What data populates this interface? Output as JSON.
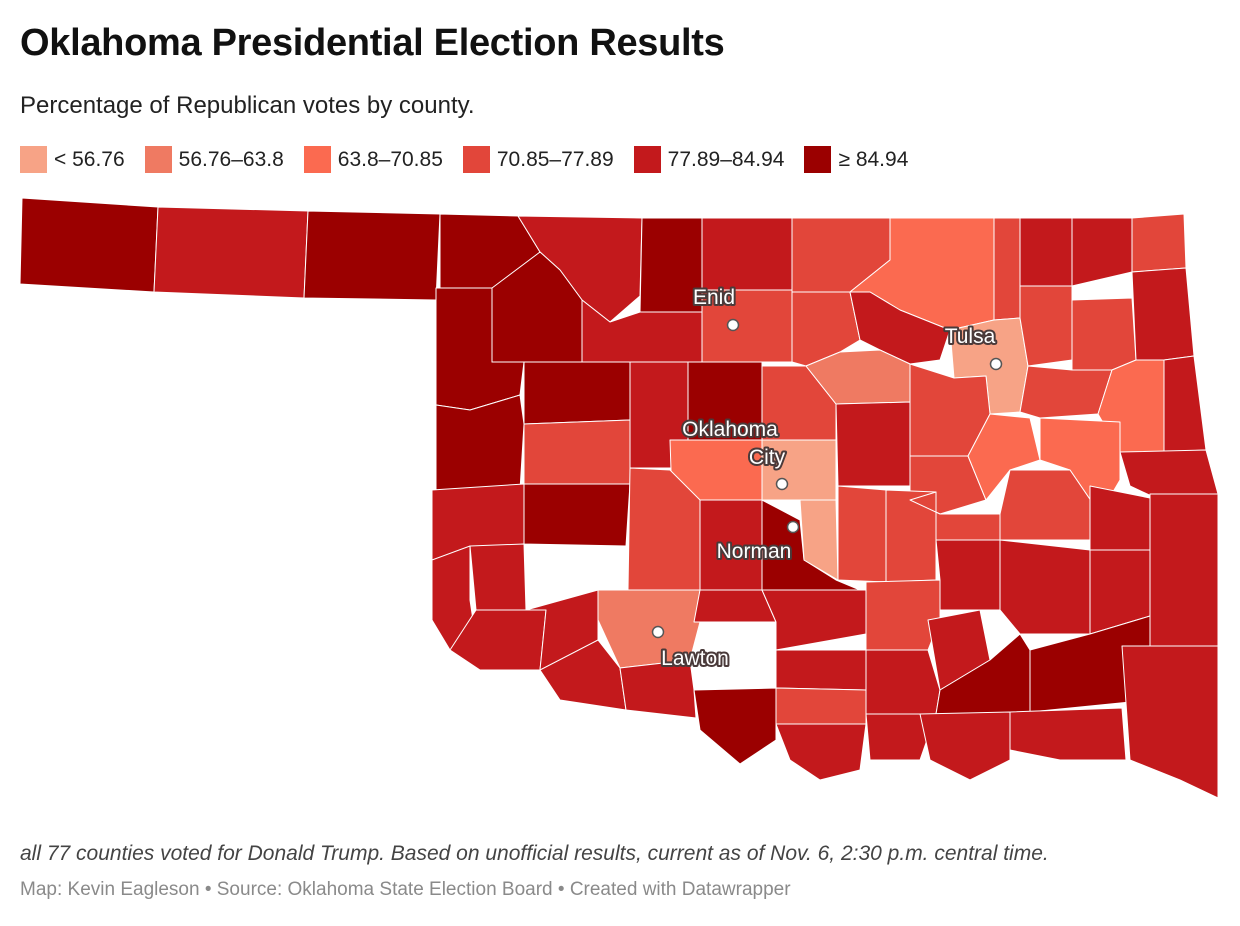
{
  "title": "Oklahoma Presidential Election Results",
  "subtitle": "Percentage of Republican votes by county.",
  "legend": [
    {
      "label": "< 56.76",
      "color": "#f7a386"
    },
    {
      "label": "56.76–63.8",
      "color": "#ef7a62"
    },
    {
      "label": "63.8–70.85",
      "color": "#fb6a50"
    },
    {
      "label": "70.85–77.89",
      "color": "#e2463a"
    },
    {
      "label": "77.89–84.94",
      "color": "#c3191c"
    },
    {
      "label": "≥ 84.94",
      "color": "#9b0000"
    }
  ],
  "cities": [
    {
      "name": "Enid",
      "label_lines": [
        "Enid"
      ]
    },
    {
      "name": "Tulsa",
      "label_lines": [
        "Tulsa"
      ]
    },
    {
      "name": "Oklahoma City",
      "label_lines": [
        "Oklahoma",
        "City"
      ]
    },
    {
      "name": "Norman",
      "label_lines": [
        "Norman"
      ]
    },
    {
      "name": "Lawton",
      "label_lines": [
        "Lawton"
      ]
    }
  ],
  "note": "all 77 counties voted for Donald Trump. Based on unofficial results, current as of Nov. 6, 2:30 p.m. central time.",
  "source": "Map: Kevin Eagleson • Source: Oklahoma State Election Board • Created with Datawrapper"
}
